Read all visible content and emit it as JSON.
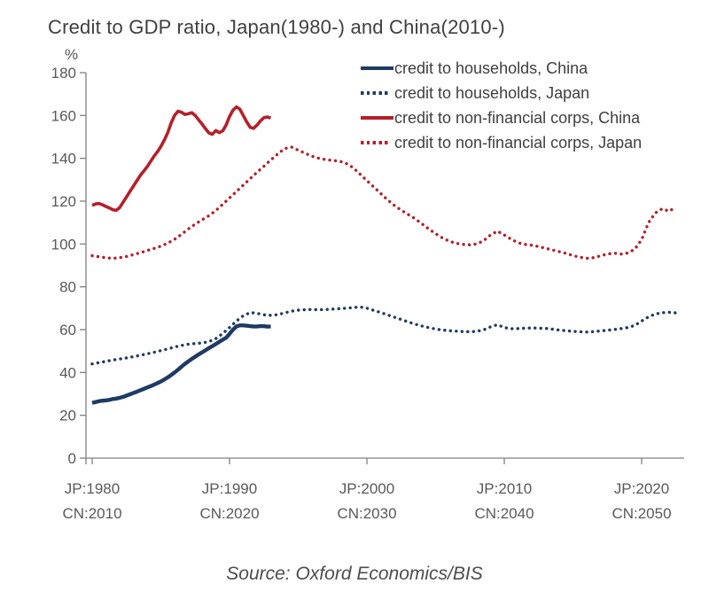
{
  "title": "Credit to GDP ratio, Japan(1980-) and China(2010-)",
  "y_unit": "%",
  "source": "Source: Oxford Economics/BIS",
  "colors": {
    "navy": "#1f3a63",
    "red": "#b5202a",
    "title_text": "#3f3f3f",
    "axis_text": "#595959",
    "axis_line": "#808080"
  },
  "chart_data": {
    "type": "line",
    "title": "Credit to GDP ratio, Japan(1980-) and China(2010-)",
    "xlabel": "",
    "ylabel": "%",
    "ylim": [
      0,
      180
    ],
    "ytick_step": 20,
    "yticks": [
      0,
      20,
      40,
      60,
      80,
      100,
      120,
      140,
      160,
      180
    ],
    "grid": false,
    "legend_position": "top-right",
    "x_axis_note": "dual timeline: Japan starts 1980, China starts 2010, aligned on same axis",
    "xticks": [
      {
        "jp": "JP:1980",
        "cn": "CN:2010",
        "jp_year": 1980
      },
      {
        "jp": "JP:1990",
        "cn": "CN:2020",
        "jp_year": 1990
      },
      {
        "jp": "JP:2000",
        "cn": "CN:2030",
        "jp_year": 2000
      },
      {
        "jp": "JP:2010",
        "cn": "CN:2040",
        "jp_year": 2010
      },
      {
        "jp": "JP:2020",
        "cn": "CN:2050",
        "jp_year": 2020
      }
    ],
    "series": [
      {
        "id": "japan-nfc",
        "label": "credit to non-financial corps, Japan",
        "color": "#b5202a",
        "style": "dotted",
        "timeline": "JP",
        "x": [
          1980,
          1980.5,
          1981,
          1981.5,
          1982,
          1982.5,
          1983,
          1983.5,
          1984,
          1984.5,
          1985,
          1985.5,
          1986,
          1986.5,
          1987,
          1987.5,
          1988,
          1988.5,
          1989,
          1989.5,
          1990,
          1990.5,
          1991,
          1991.5,
          1992,
          1992.5,
          1993,
          1993.5,
          1994,
          1994.5,
          1995,
          1995.5,
          1996,
          1996.5,
          1997,
          1997.5,
          1998,
          1998.5,
          1999,
          1999.5,
          2000,
          2000.5,
          2001,
          2001.5,
          2002,
          2002.5,
          2003,
          2003.5,
          2004,
          2004.5,
          2005,
          2005.5,
          2006,
          2006.5,
          2007,
          2007.5,
          2008,
          2008.5,
          2009,
          2009.5,
          2010,
          2010.5,
          2011,
          2011.5,
          2012,
          2012.5,
          2013,
          2013.5,
          2014,
          2014.5,
          2015,
          2015.5,
          2016,
          2016.5,
          2017,
          2017.5,
          2018,
          2018.5,
          2019,
          2019.5,
          2020,
          2020.5,
          2021,
          2021.5,
          2022,
          2022.5
        ],
        "values": [
          94.5,
          94.0,
          93.6,
          93.3,
          93.6,
          94.2,
          95.0,
          95.9,
          96.9,
          97.9,
          99.0,
          100.4,
          102.2,
          104.5,
          107.0,
          109.3,
          111.3,
          113.2,
          115.6,
          118.5,
          121.5,
          124.5,
          127.5,
          130.5,
          133.5,
          136.3,
          139.2,
          142.0,
          144.5,
          145.3,
          143.8,
          142.4,
          141.0,
          140.0,
          139.4,
          139.0,
          138.7,
          137.6,
          135.6,
          132.6,
          129.6,
          126.6,
          123.6,
          120.6,
          118.0,
          115.8,
          113.8,
          111.8,
          109.5,
          107.0,
          104.8,
          102.8,
          101.3,
          100.3,
          99.8,
          99.6,
          100.0,
          101.6,
          104.2,
          106.0,
          104.2,
          102.2,
          100.6,
          99.8,
          99.4,
          98.8,
          98.0,
          97.2,
          96.4,
          95.6,
          94.6,
          93.8,
          93.3,
          93.6,
          94.5,
          95.3,
          95.7,
          95.3,
          95.8,
          97.6,
          102.0,
          110.0,
          114.5,
          116.5,
          115.3,
          117.3
        ]
      },
      {
        "id": "japan-hh",
        "label": "credit to households, Japan",
        "color": "#1f3a63",
        "style": "dotted",
        "timeline": "JP",
        "x": [
          1980,
          1980.5,
          1981,
          1981.5,
          1982,
          1982.5,
          1983,
          1983.5,
          1984,
          1984.5,
          1985,
          1985.5,
          1986,
          1986.5,
          1987,
          1987.5,
          1988,
          1988.5,
          1989,
          1989.5,
          1990,
          1990.5,
          1991,
          1991.5,
          1992,
          1992.5,
          1993,
          1993.5,
          1994,
          1994.5,
          1995,
          1995.5,
          1996,
          1996.5,
          1997,
          1997.5,
          1998,
          1998.5,
          1999,
          1999.5,
          2000,
          2000.5,
          2001,
          2001.5,
          2002,
          2002.5,
          2003,
          2003.5,
          2004,
          2004.5,
          2005,
          2005.5,
          2006,
          2006.5,
          2007,
          2007.5,
          2008,
          2008.5,
          2009,
          2009.5,
          2010,
          2010.5,
          2011,
          2011.5,
          2012,
          2012.5,
          2013,
          2013.5,
          2014,
          2014.5,
          2015,
          2015.5,
          2016,
          2016.5,
          2017,
          2017.5,
          2018,
          2018.5,
          2019,
          2019.5,
          2020,
          2020.5,
          2021,
          2021.5,
          2022,
          2022.5
        ],
        "values": [
          44.0,
          44.6,
          45.2,
          45.8,
          46.3,
          46.8,
          47.4,
          48.0,
          48.7,
          49.4,
          50.2,
          51.0,
          51.9,
          52.6,
          53.2,
          53.5,
          53.8,
          54.4,
          55.8,
          58.2,
          61.0,
          64.0,
          66.5,
          68.0,
          67.6,
          66.9,
          66.7,
          67.0,
          67.8,
          68.6,
          69.1,
          69.3,
          69.4,
          69.3,
          69.4,
          69.6,
          69.8,
          70.0,
          70.3,
          70.6,
          70.0,
          69.0,
          68.0,
          66.9,
          65.8,
          64.7,
          63.6,
          62.6,
          61.7,
          60.9,
          60.3,
          59.8,
          59.5,
          59.3,
          59.1,
          59.0,
          59.2,
          59.9,
          61.3,
          62.3,
          61.0,
          60.4,
          60.5,
          60.7,
          60.8,
          60.7,
          60.6,
          60.2,
          59.8,
          59.5,
          59.2,
          59.0,
          58.9,
          59.1,
          59.4,
          59.7,
          60.1,
          60.5,
          61.0,
          62.0,
          64.0,
          66.0,
          67.3,
          67.9,
          68.1,
          67.8
        ]
      },
      {
        "id": "china-nfc",
        "label": "credit to non-financial corps, China",
        "color": "#b5202a",
        "style": "solid",
        "timeline": "CN",
        "x": [
          2010,
          2010.25,
          2010.5,
          2010.75,
          2011,
          2011.25,
          2011.5,
          2011.75,
          2012,
          2012.25,
          2012.5,
          2012.75,
          2013,
          2013.25,
          2013.5,
          2013.75,
          2014,
          2014.25,
          2014.5,
          2014.75,
          2015,
          2015.25,
          2015.5,
          2015.75,
          2016,
          2016.25,
          2016.5,
          2016.75,
          2017,
          2017.25,
          2017.5,
          2017.75,
          2018,
          2018.25,
          2018.5,
          2018.75,
          2019,
          2019.25,
          2019.5,
          2019.75,
          2020,
          2020.25,
          2020.5,
          2020.75,
          2021,
          2021.25,
          2021.5,
          2021.75,
          2022,
          2022.25,
          2022.5,
          2022.75,
          2023
        ],
        "values": [
          118.0,
          118.7,
          118.9,
          118.3,
          117.5,
          116.8,
          116.0,
          115.7,
          117.0,
          119.5,
          122.0,
          124.5,
          127.0,
          129.5,
          132.0,
          134.0,
          136.0,
          138.5,
          141.0,
          143.0,
          145.5,
          148.5,
          152.0,
          156.5,
          160.0,
          162.0,
          161.5,
          160.5,
          160.8,
          161.3,
          160.0,
          158.0,
          156.0,
          153.8,
          151.8,
          151.2,
          153.0,
          152.0,
          152.8,
          155.5,
          159.5,
          162.5,
          164.0,
          163.0,
          160.0,
          157.0,
          154.5,
          154.0,
          155.5,
          157.5,
          159.0,
          159.3,
          158.8
        ]
      },
      {
        "id": "china-hh",
        "label": "credit to households, China",
        "color": "#1f3a63",
        "style": "solid",
        "timeline": "CN",
        "x": [
          2010,
          2010.25,
          2010.5,
          2010.75,
          2011,
          2011.25,
          2011.5,
          2011.75,
          2012,
          2012.25,
          2012.5,
          2012.75,
          2013,
          2013.25,
          2013.5,
          2013.75,
          2014,
          2014.25,
          2014.5,
          2014.75,
          2015,
          2015.25,
          2015.5,
          2015.75,
          2016,
          2016.25,
          2016.5,
          2016.75,
          2017,
          2017.25,
          2017.5,
          2017.75,
          2018,
          2018.25,
          2018.5,
          2018.75,
          2019,
          2019.25,
          2019.5,
          2019.75,
          2020,
          2020.25,
          2020.5,
          2020.75,
          2021,
          2021.25,
          2021.5,
          2021.75,
          2022,
          2022.25,
          2022.5,
          2022.75,
          2023
        ],
        "values": [
          25.8,
          26.2,
          26.6,
          26.8,
          27.0,
          27.2,
          27.6,
          27.8,
          28.2,
          28.6,
          29.2,
          29.8,
          30.4,
          31.0,
          31.7,
          32.3,
          33.0,
          33.6,
          34.3,
          35.0,
          35.8,
          36.7,
          37.7,
          38.8,
          40.0,
          41.3,
          42.7,
          44.0,
          45.2,
          46.3,
          47.4,
          48.4,
          49.4,
          50.4,
          51.4,
          52.3,
          53.3,
          54.3,
          55.3,
          56.2,
          58.0,
          60.0,
          61.5,
          62.0,
          62.0,
          61.8,
          61.6,
          61.5,
          61.5,
          61.7,
          61.6,
          61.4,
          61.5
        ]
      }
    ],
    "legend_order": [
      "china-hh",
      "japan-hh",
      "china-nfc",
      "japan-nfc"
    ]
  }
}
